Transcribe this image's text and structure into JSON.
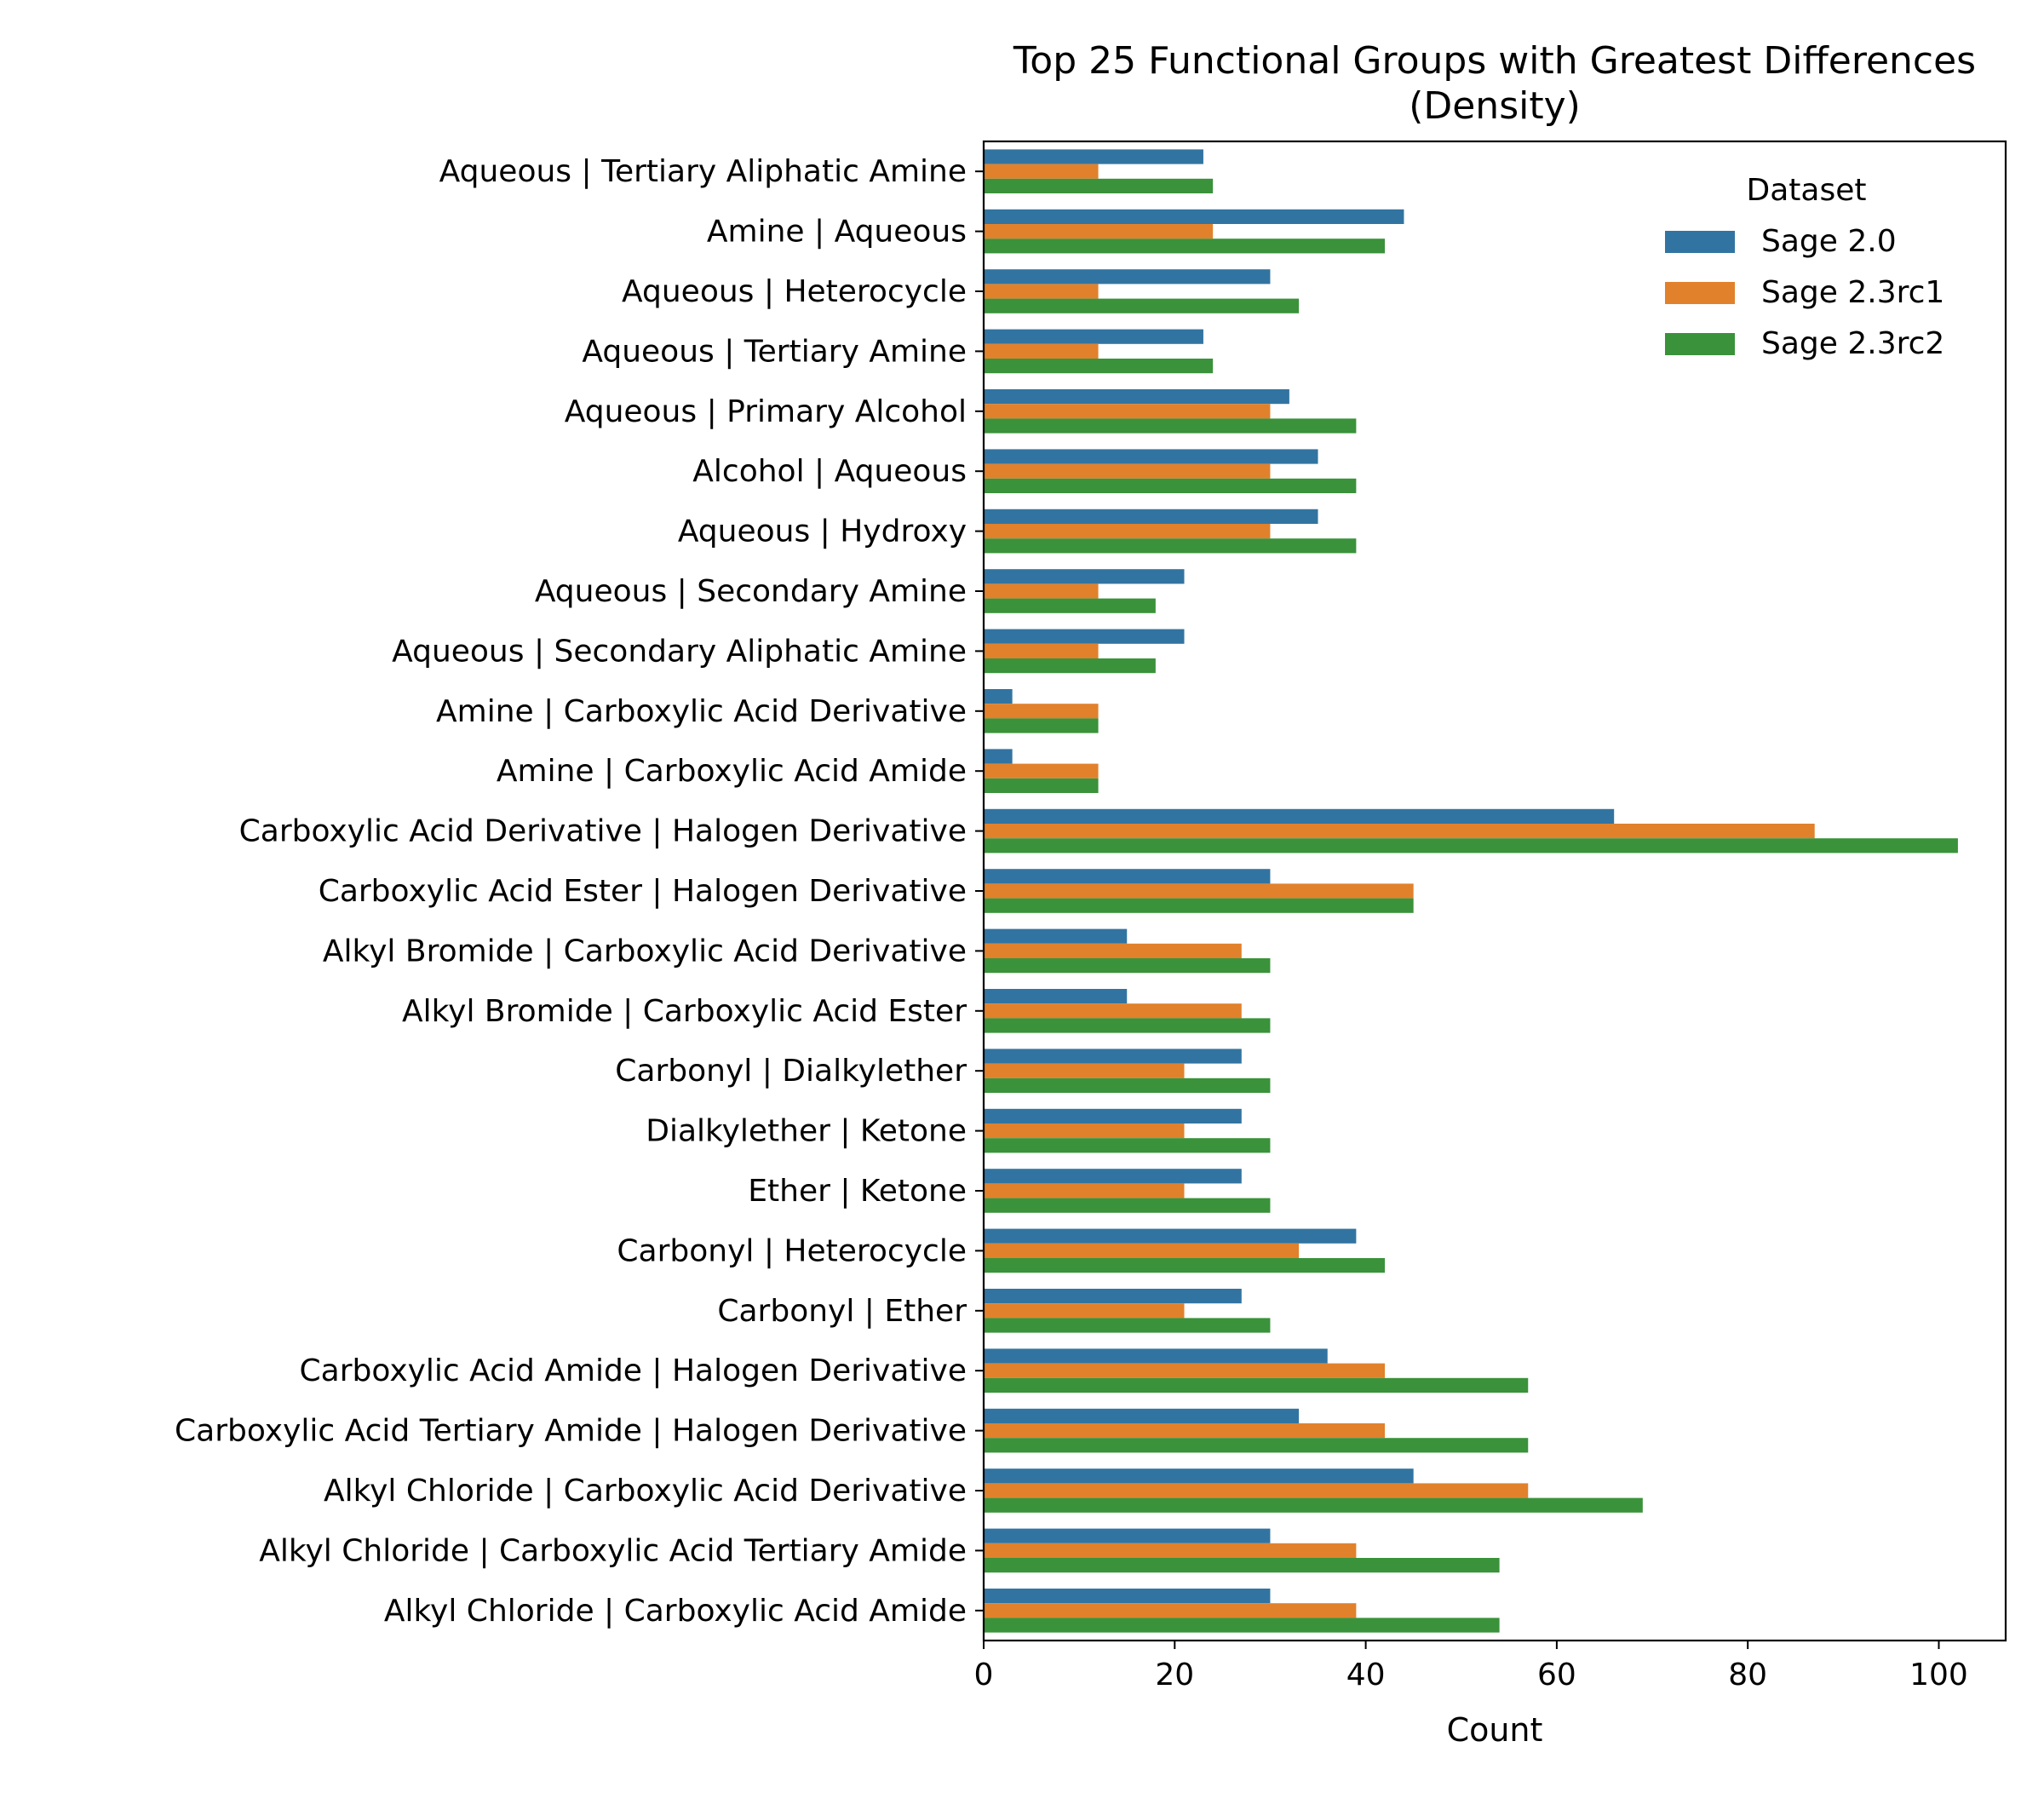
{
  "chart_data": {
    "type": "bar",
    "orientation": "horizontal",
    "title": "Top 25 Functional Groups with Greatest Differences",
    "subtitle": "(Density)",
    "xlabel": "Count",
    "ylabel": "",
    "xlim": [
      0,
      107
    ],
    "xticks": [
      0,
      20,
      40,
      60,
      80,
      100
    ],
    "grid": false,
    "legend": {
      "title": "Dataset",
      "placement": "top-right"
    },
    "categories": [
      "Aqueous | Tertiary Aliphatic Amine",
      "Amine | Aqueous",
      "Aqueous | Heterocycle",
      "Aqueous | Tertiary Amine",
      "Aqueous | Primary Alcohol",
      "Alcohol | Aqueous",
      "Aqueous | Hydroxy",
      "Aqueous | Secondary Amine",
      "Aqueous | Secondary Aliphatic Amine",
      "Amine | Carboxylic Acid Derivative",
      "Amine | Carboxylic Acid Amide",
      "Carboxylic Acid Derivative | Halogen Derivative",
      "Carboxylic Acid Ester | Halogen Derivative",
      "Alkyl Bromide | Carboxylic Acid Derivative",
      "Alkyl Bromide | Carboxylic Acid Ester",
      "Carbonyl | Dialkylether",
      "Dialkylether | Ketone",
      "Ether | Ketone",
      "Carbonyl | Heterocycle",
      "Carbonyl | Ether",
      "Carboxylic Acid Amide | Halogen Derivative",
      "Carboxylic Acid Tertiary Amide | Halogen Derivative",
      "Alkyl Chloride | Carboxylic Acid Derivative",
      "Alkyl Chloride | Carboxylic Acid Tertiary Amide",
      "Alkyl Chloride | Carboxylic Acid Amide"
    ],
    "series": [
      {
        "name": "Sage 2.0",
        "color": "#3274a1",
        "values": [
          23,
          44,
          30,
          23,
          32,
          35,
          35,
          21,
          21,
          3,
          3,
          66,
          30,
          15,
          15,
          27,
          27,
          27,
          39,
          27,
          36,
          33,
          45,
          30,
          30
        ]
      },
      {
        "name": "Sage 2.3rc1",
        "color": "#e1812c",
        "values": [
          12,
          24,
          12,
          12,
          30,
          30,
          30,
          12,
          12,
          12,
          12,
          87,
          45,
          27,
          27,
          21,
          21,
          21,
          33,
          21,
          42,
          42,
          57,
          39,
          39
        ]
      },
      {
        "name": "Sage 2.3rc2",
        "color": "#3a923a",
        "values": [
          24,
          42,
          33,
          24,
          39,
          39,
          39,
          18,
          18,
          12,
          12,
          102,
          45,
          30,
          30,
          30,
          30,
          30,
          42,
          30,
          57,
          57,
          69,
          54,
          54
        ]
      }
    ]
  }
}
